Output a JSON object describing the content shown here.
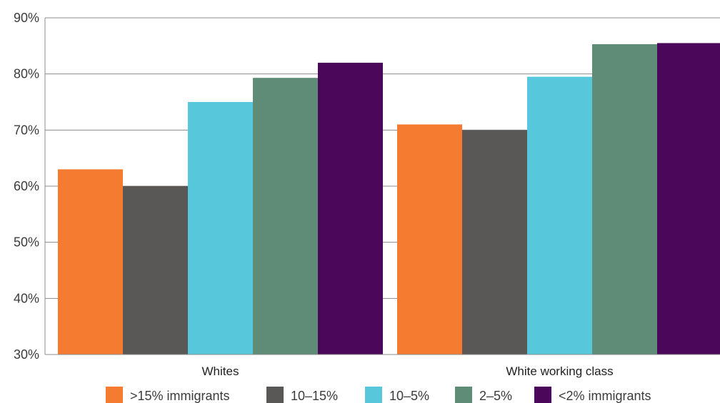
{
  "chart_data": {
    "type": "bar",
    "categories": [
      "Whites",
      "White working class"
    ],
    "series": [
      {
        "name": ">15% immigrants",
        "color": "#F47B30",
        "values": [
          63,
          71
        ]
      },
      {
        "name": "10–15%",
        "color": "#5A5856",
        "values": [
          60,
          70
        ]
      },
      {
        "name": "10–5%",
        "color": "#57C8DC",
        "values": [
          75,
          79.5
        ]
      },
      {
        "name": "2–5%",
        "color": "#5E8C77",
        "values": [
          79.3,
          85.3
        ]
      },
      {
        "name": "<2% immigrants",
        "color": "#4B085A",
        "values": [
          82,
          85.5
        ]
      }
    ],
    "ylim": [
      30,
      90
    ],
    "yticks": [
      "30%",
      "40%",
      "50%",
      "60%",
      "70%",
      "80%",
      "90%"
    ],
    "ytick_values": [
      30,
      40,
      50,
      60,
      70,
      80,
      90
    ],
    "grid": true,
    "legend_position": "bottom"
  }
}
